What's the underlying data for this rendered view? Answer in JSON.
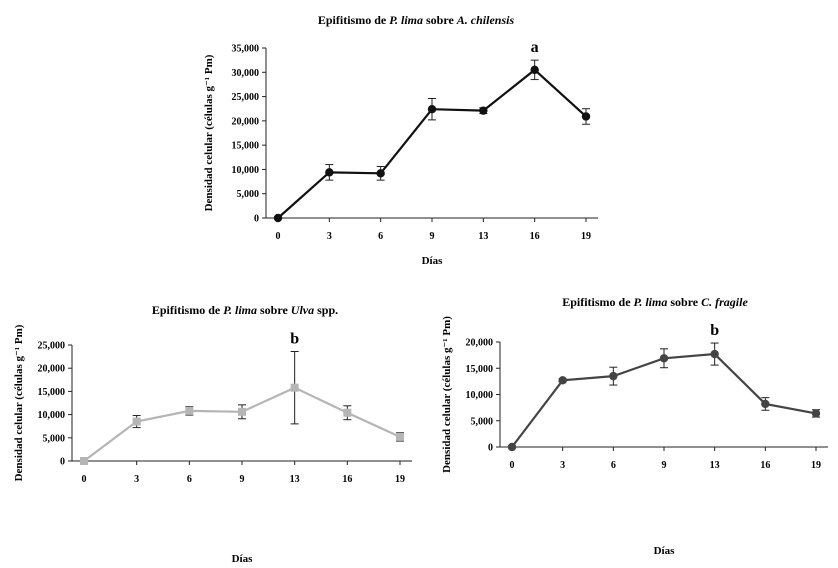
{
  "chart_data": [
    {
      "id": "top",
      "type": "line",
      "title_parts": [
        {
          "text": "Epifitismo de ",
          "italic": false
        },
        {
          "text": "P. lima",
          "italic": true
        },
        {
          "text": " sobre ",
          "italic": false
        },
        {
          "text": "A. chilensis",
          "italic": true
        }
      ],
      "xlabel": "Días",
      "ylabel": "Densidad celular (células g⁻¹ Pm)",
      "categories": [
        "0",
        "3",
        "6",
        "9",
        "13",
        "16",
        "19"
      ],
      "values": [
        0,
        9400,
        9200,
        22400,
        22100,
        30500,
        20900
      ],
      "errors": [
        0,
        1600,
        1400,
        2200,
        600,
        2000,
        1600
      ],
      "ylim": [
        0,
        35000
      ],
      "yticks": [
        "0",
        "5,000",
        "10,000",
        "15,000",
        "20,000",
        "25,000",
        "30,000",
        "35,000"
      ],
      "annotation": {
        "text": "a",
        "category": "16"
      },
      "color": "#111111",
      "marker": "circle",
      "grid": false
    },
    {
      "id": "left",
      "type": "line",
      "title_parts": [
        {
          "text": "Epifitismo de ",
          "italic": false
        },
        {
          "text": "P. lima",
          "italic": true
        },
        {
          "text": " sobre ",
          "italic": false
        },
        {
          "text": "Ulva",
          "italic": true
        },
        {
          "text": " spp.",
          "italic": false
        }
      ],
      "xlabel": "Días",
      "ylabel": "Densidad celular (células g⁻¹ Pm)",
      "categories": [
        "0",
        "3",
        "6",
        "9",
        "13",
        "16",
        "19"
      ],
      "values": [
        0,
        8500,
        10800,
        10600,
        15800,
        10400,
        5200
      ],
      "errors": [
        0,
        1300,
        900,
        1500,
        7800,
        1500,
        900
      ],
      "ylim": [
        0,
        25000
      ],
      "yticks": [
        "0",
        "5,000",
        "10,000",
        "15,000",
        "20,000",
        "25,000"
      ],
      "annotation": {
        "text": "b",
        "category": "13"
      },
      "color": "#b5b5b5",
      "marker": "square",
      "grid": false
    },
    {
      "id": "right",
      "type": "line",
      "title_parts": [
        {
          "text": "Epifitismo de ",
          "italic": false
        },
        {
          "text": "P. lima",
          "italic": true
        },
        {
          "text": " sobre ",
          "italic": false
        },
        {
          "text": "C. fragile",
          "italic": true
        }
      ],
      "xlabel": "Días",
      "ylabel": "Densidad celular (células g⁻¹ Pm)",
      "categories": [
        "0",
        "3",
        "6",
        "9",
        "13",
        "16",
        "19"
      ],
      "values": [
        0,
        12700,
        13500,
        16900,
        17700,
        8200,
        6400
      ],
      "errors": [
        0,
        300,
        1700,
        1800,
        2100,
        1200,
        700
      ],
      "ylim": [
        0,
        20000
      ],
      "yticks": [
        "0",
        "5,000",
        "10,000",
        "15,000",
        "20,000"
      ],
      "annotation": {
        "text": "b",
        "category": "13"
      },
      "color": "#444444",
      "marker": "circle",
      "grid": false
    }
  ]
}
